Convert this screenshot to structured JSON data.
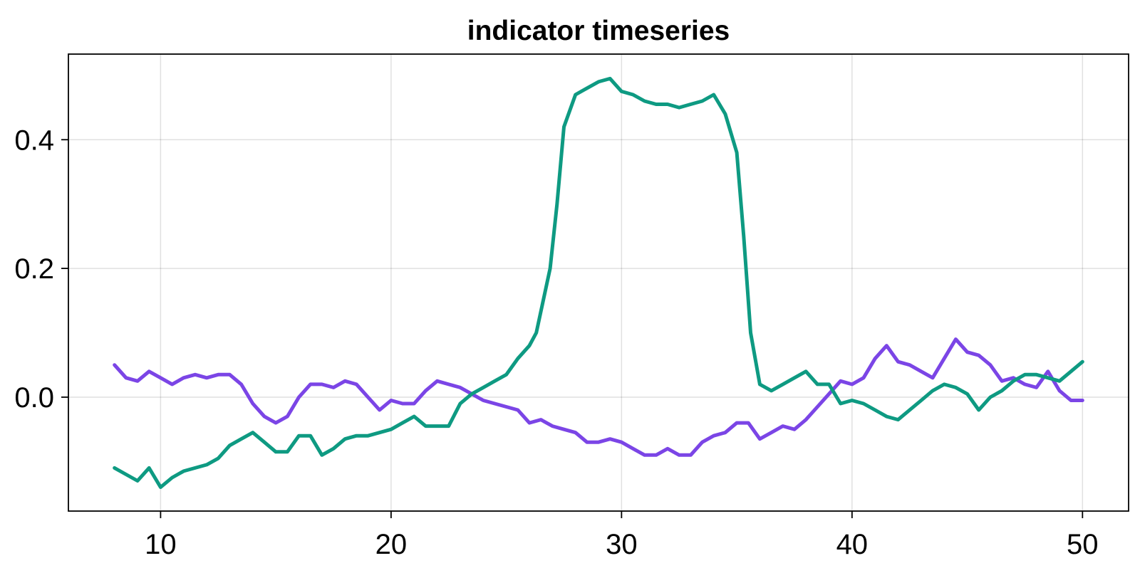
{
  "chart_data": {
    "type": "line",
    "title": "indicator timeseries",
    "xlabel": "",
    "ylabel": "",
    "xlim": [
      6,
      52
    ],
    "ylim": [
      -0.177,
      0.533
    ],
    "xticks": [
      10,
      20,
      30,
      40,
      50
    ],
    "yticks": [
      0.0,
      0.2,
      0.4
    ],
    "ytick_labels": [
      "0.0",
      "0.2",
      "0.4"
    ],
    "grid": true,
    "legend": "none",
    "series": [
      {
        "color": "#7b45e6",
        "x": [
          8.0,
          8.5,
          9.0,
          9.5,
          10.0,
          10.5,
          11.0,
          11.5,
          12.0,
          12.5,
          13.0,
          13.5,
          14.0,
          14.5,
          15.0,
          15.5,
          16.0,
          16.5,
          17.0,
          17.5,
          18.0,
          18.5,
          19.0,
          19.5,
          20.0,
          20.5,
          21.0,
          21.5,
          22.0,
          22.5,
          23.0,
          23.5,
          24.0,
          24.5,
          25.0,
          25.5,
          26.0,
          26.5,
          27.0,
          27.5,
          28.0,
          28.5,
          29.0,
          29.5,
          30.0,
          30.5,
          31.0,
          31.5,
          32.0,
          32.5,
          33.0,
          33.5,
          34.0,
          34.5,
          35.0,
          35.5,
          36.0,
          36.5,
          37.0,
          37.5,
          38.0,
          38.5,
          39.0,
          39.5,
          40.0,
          40.5,
          41.0,
          41.5,
          42.0,
          42.5,
          43.0,
          43.5,
          44.0,
          44.5,
          45.0,
          45.5,
          46.0,
          46.5,
          47.0,
          47.5,
          48.0,
          48.5,
          49.0,
          49.5,
          50.0
        ],
        "y": [
          0.05,
          0.03,
          0.025,
          0.04,
          0.03,
          0.02,
          0.03,
          0.035,
          0.03,
          0.035,
          0.035,
          0.02,
          -0.01,
          -0.03,
          -0.04,
          -0.03,
          0.0,
          0.02,
          0.02,
          0.015,
          0.025,
          0.02,
          0.0,
          -0.02,
          -0.005,
          -0.01,
          -0.01,
          0.01,
          0.025,
          0.02,
          0.015,
          0.005,
          -0.005,
          -0.01,
          -0.015,
          -0.02,
          -0.04,
          -0.035,
          -0.045,
          -0.05,
          -0.055,
          -0.07,
          -0.07,
          -0.065,
          -0.07,
          -0.08,
          -0.09,
          -0.09,
          -0.08,
          -0.09,
          -0.09,
          -0.07,
          -0.06,
          -0.055,
          -0.04,
          -0.04,
          -0.065,
          -0.055,
          -0.045,
          -0.05,
          -0.035,
          -0.015,
          0.005,
          0.025,
          0.02,
          0.03,
          0.06,
          0.08,
          0.055,
          0.05,
          0.04,
          0.03,
          0.06,
          0.09,
          0.07,
          0.065,
          0.05,
          0.025,
          0.03,
          0.02,
          0.015,
          0.04,
          0.01,
          -0.005,
          -0.005
        ]
      },
      {
        "color": "#0e9a82",
        "x": [
          8.0,
          8.5,
          9.0,
          9.5,
          10.0,
          10.5,
          11.0,
          11.5,
          12.0,
          12.5,
          13.0,
          13.5,
          14.0,
          14.5,
          15.0,
          15.5,
          16.0,
          16.5,
          17.0,
          17.5,
          18.0,
          18.5,
          19.0,
          19.5,
          20.0,
          20.5,
          21.0,
          21.5,
          22.0,
          22.5,
          23.0,
          23.5,
          24.0,
          24.5,
          25.0,
          25.5,
          26.0,
          26.3,
          26.6,
          26.9,
          27.2,
          27.5,
          28.0,
          28.5,
          29.0,
          29.5,
          30.0,
          30.5,
          31.0,
          31.5,
          32.0,
          32.5,
          33.0,
          33.5,
          34.0,
          34.5,
          35.0,
          35.3,
          35.6,
          36.0,
          36.5,
          37.0,
          37.5,
          38.0,
          38.5,
          39.0,
          39.5,
          40.0,
          40.5,
          41.0,
          41.5,
          42.0,
          42.5,
          43.0,
          43.5,
          44.0,
          44.5,
          45.0,
          45.5,
          46.0,
          46.5,
          47.0,
          47.5,
          48.0,
          48.5,
          49.0,
          49.5,
          50.0
        ],
        "y": [
          -0.11,
          -0.12,
          -0.13,
          -0.11,
          -0.14,
          -0.125,
          -0.115,
          -0.11,
          -0.105,
          -0.095,
          -0.075,
          -0.065,
          -0.055,
          -0.07,
          -0.085,
          -0.085,
          -0.06,
          -0.06,
          -0.09,
          -0.08,
          -0.065,
          -0.06,
          -0.06,
          -0.055,
          -0.05,
          -0.04,
          -0.03,
          -0.045,
          -0.045,
          -0.045,
          -0.01,
          0.005,
          0.015,
          0.025,
          0.035,
          0.06,
          0.08,
          0.1,
          0.15,
          0.2,
          0.3,
          0.42,
          0.47,
          0.48,
          0.49,
          0.495,
          0.475,
          0.47,
          0.46,
          0.455,
          0.455,
          0.45,
          0.455,
          0.46,
          0.47,
          0.44,
          0.38,
          0.25,
          0.1,
          0.02,
          0.01,
          0.02,
          0.03,
          0.04,
          0.02,
          0.02,
          -0.01,
          -0.005,
          -0.01,
          -0.02,
          -0.03,
          -0.035,
          -0.02,
          -0.005,
          0.01,
          0.02,
          0.015,
          0.005,
          -0.02,
          0.0,
          0.01,
          0.025,
          0.035,
          0.035,
          0.03,
          0.025,
          0.04,
          0.055
        ]
      }
    ]
  }
}
